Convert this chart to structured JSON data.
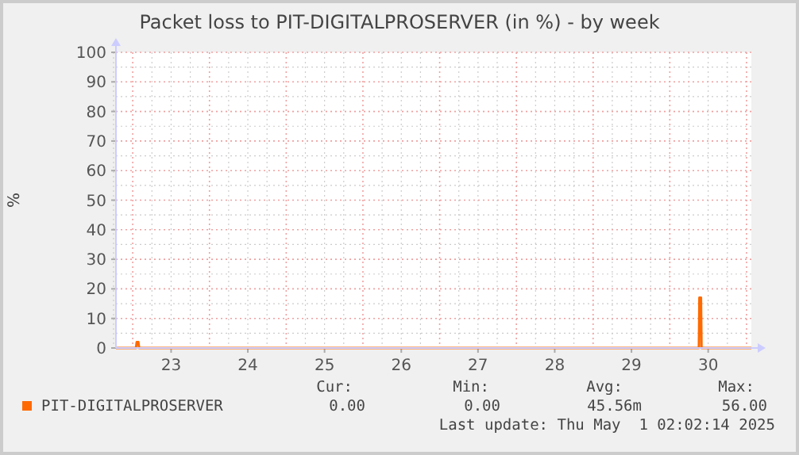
{
  "chart_data": {
    "type": "line",
    "title": "Packet loss to PIT-DIGITALPROSERVER (in %) - by week",
    "ylabel": "%",
    "xlim": [
      "2025-04-22T18:45",
      "2025-05-01T01:30"
    ],
    "xticks": [
      {
        "value": "2025-04-23T12:00",
        "label": "23"
      },
      {
        "value": "2025-04-24T12:00",
        "label": "24"
      },
      {
        "value": "2025-04-25T12:00",
        "label": "25"
      },
      {
        "value": "2025-04-26T12:00",
        "label": "26"
      },
      {
        "value": "2025-04-27T12:00",
        "label": "27"
      },
      {
        "value": "2025-04-28T12:00",
        "label": "28"
      },
      {
        "value": "2025-04-29T12:00",
        "label": "29"
      },
      {
        "value": "2025-04-30T12:00",
        "label": "30"
      }
    ],
    "ylim": [
      0,
      100
    ],
    "yticks": [
      0,
      10,
      20,
      30,
      40,
      50,
      60,
      70,
      80,
      90,
      100
    ],
    "grid": true,
    "legend": "bottom",
    "series": [
      {
        "name": "PIT-DIGITALPROSERVER",
        "color": "#ff6a00",
        "x": [
          "2025-04-22T18:45",
          "2025-04-23T01:00",
          "2025-04-23T01:15",
          "2025-04-23T01:45",
          "2025-04-23T02:00",
          "2025-04-25T00:00",
          "2025-04-27T00:00",
          "2025-04-29T00:00",
          "2025-04-30T09:05",
          "2025-04-30T09:15",
          "2025-04-30T09:45",
          "2025-04-30T09:55",
          "2025-05-01T01:30"
        ],
        "values": [
          0,
          0,
          2,
          2,
          0,
          0,
          0,
          0,
          0,
          17,
          17,
          0,
          0
        ]
      }
    ],
    "annotations": [
      "Cur:",
      "Min:",
      "Avg:",
      "Max:",
      "0.00",
      "0.00",
      "45.56m",
      "56.00",
      "Last update: Thu May  1 02:02:14 2025"
    ]
  }
}
